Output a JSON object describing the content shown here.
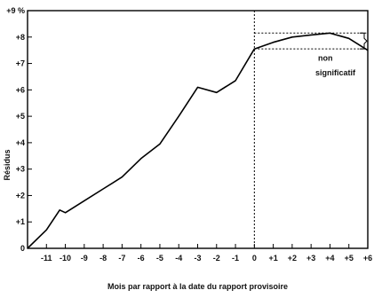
{
  "chart_data": {
    "type": "line",
    "title": "",
    "xlabel": "Mois par rapport à la date du rapport provisoire",
    "ylabel": "Résidus",
    "xlim": [
      -12,
      6
    ],
    "ylim": [
      0,
      9
    ],
    "grid": false,
    "x_tick_labels": [
      "-11",
      "-10",
      "-9",
      "-8",
      "-7",
      "-6",
      "-5",
      "-4",
      "-3",
      "-2",
      "-1",
      "0",
      "+1",
      "+2",
      "+3",
      "+4",
      "+5",
      "+6"
    ],
    "x_tick_values": [
      -11,
      -10,
      -9,
      -8,
      -7,
      -6,
      -5,
      -4,
      -3,
      -2,
      -1,
      0,
      1,
      2,
      3,
      4,
      5,
      6
    ],
    "y_tick_labels": [
      "0",
      "+1",
      "+2",
      "+3",
      "+4",
      "+5",
      "+6",
      "+7",
      "+8",
      "+9 %"
    ],
    "y_tick_values": [
      0,
      1,
      2,
      3,
      4,
      5,
      6,
      7,
      8,
      9
    ],
    "series": [
      {
        "x": [
          -12,
          -11,
          -10.3,
          -10,
          -9,
          -8,
          -7,
          -6,
          -5,
          -4,
          -3,
          -2,
          -1,
          0,
          1,
          2,
          3,
          4,
          5,
          6
        ],
        "y": [
          0,
          0.7,
          1.45,
          1.35,
          1.8,
          2.25,
          2.7,
          3.4,
          3.95,
          5.0,
          6.1,
          5.9,
          6.35,
          7.55,
          7.8,
          8.0,
          8.08,
          8.15,
          7.95,
          7.5
        ]
      }
    ],
    "reference_vline_x": 0,
    "reference_hlines_y": [
      7.55,
      8.15
    ],
    "annotations": {
      "bracket_label_line1": "non",
      "bracket_label_line2": "significatif"
    },
    "colors": {
      "line": "#000000",
      "reference": "#000000"
    }
  }
}
